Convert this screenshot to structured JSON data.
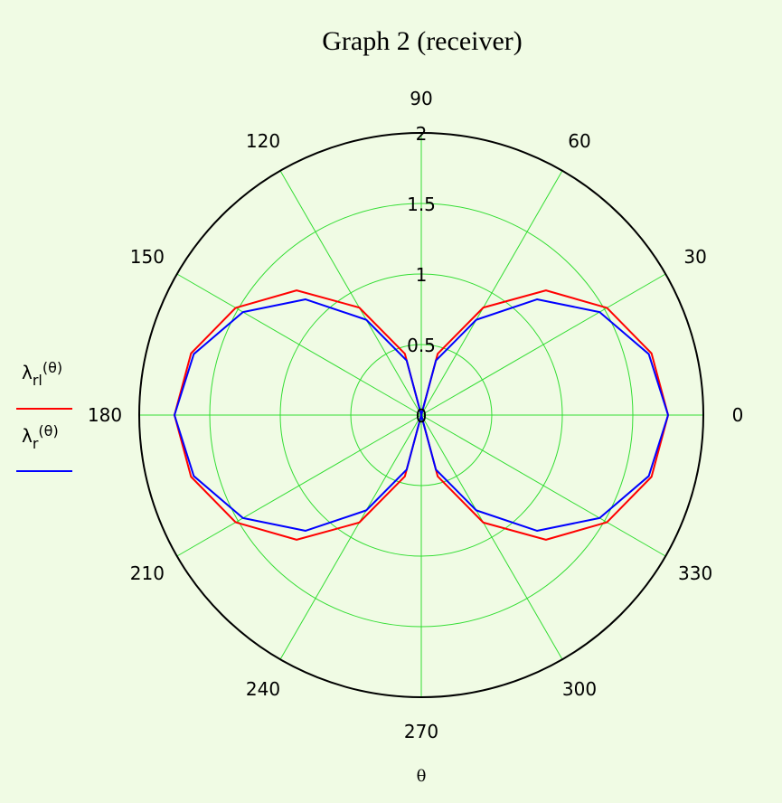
{
  "chart_data": {
    "type": "polar-line",
    "title": "Graph 2 (receiver)",
    "xlabel": "θ",
    "angle_unit": "degrees",
    "angular_ticks": [
      0,
      30,
      60,
      90,
      120,
      150,
      180,
      210,
      240,
      270,
      300,
      330
    ],
    "angular_tick_labels": [
      "0",
      "30",
      "60",
      "90",
      "120",
      "150",
      "180",
      "210",
      "240",
      "270",
      "300",
      "330"
    ],
    "radial_ticks": [
      0,
      0.5,
      1,
      1.5,
      2
    ],
    "radial_tick_labels": [
      "0",
      "0.5",
      "1",
      "1.5",
      "2"
    ],
    "rlim": [
      0,
      2
    ],
    "grid": true,
    "legend_position": "left",
    "series": [
      {
        "name": "λrl(θ)",
        "legend_main": "λ",
        "legend_sub": "rl",
        "legend_arg": "(θ)",
        "color": "#ff0000",
        "theta": [
          0,
          15,
          30,
          45,
          60,
          75,
          90,
          105,
          120,
          135,
          150,
          165,
          180,
          195,
          210,
          225,
          240,
          255,
          270,
          285,
          300,
          315,
          330,
          345,
          360
        ],
        "r": [
          1.75,
          1.69,
          1.52,
          1.25,
          0.88,
          0.45,
          0.0,
          0.45,
          0.88,
          1.25,
          1.52,
          1.69,
          1.75,
          1.69,
          1.52,
          1.25,
          0.88,
          0.45,
          0.0,
          0.45,
          0.88,
          1.25,
          1.52,
          1.69,
          1.75
        ]
      },
      {
        "name": "λr(θ)",
        "legend_main": "λ",
        "legend_sub": "r",
        "legend_arg": "(θ)",
        "color": "#0000ff",
        "theta": [
          0,
          15,
          30,
          45,
          60,
          75,
          90,
          105,
          120,
          135,
          150,
          165,
          180,
          195,
          210,
          225,
          240,
          255,
          270,
          285,
          300,
          315,
          330,
          345,
          360
        ],
        "r": [
          1.75,
          1.67,
          1.46,
          1.16,
          0.78,
          0.4,
          0.0,
          0.4,
          0.78,
          1.16,
          1.46,
          1.67,
          1.75,
          1.67,
          1.46,
          1.16,
          0.78,
          0.4,
          0.0,
          0.4,
          0.78,
          1.16,
          1.46,
          1.67,
          1.75
        ]
      }
    ]
  },
  "colors": {
    "background": "#f0fbe4",
    "grid": "#33dd33",
    "frame": "#000000"
  }
}
